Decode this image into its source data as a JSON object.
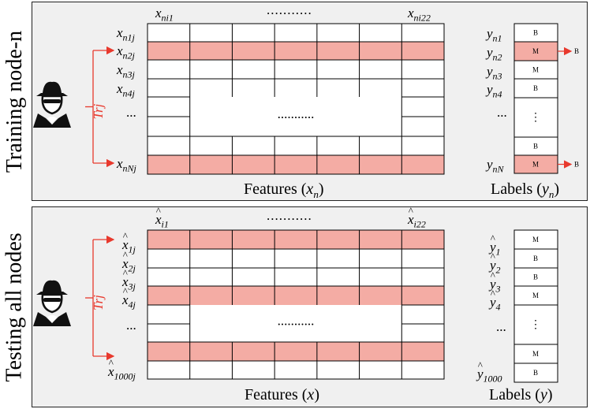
{
  "training": {
    "side_label": "Training node-n",
    "col_first": "x_{ni1}",
    "col_last": "x_{ni22}",
    "col_first_base": "x",
    "col_first_sub": "ni1",
    "col_last_base": "x",
    "col_last_sub": "ni22",
    "rows": [
      {
        "base": "x",
        "sub": "n1j"
      },
      {
        "base": "x",
        "sub": "n2j"
      },
      {
        "base": "x",
        "sub": "n3j"
      },
      {
        "base": "x",
        "sub": "n4j"
      },
      {
        "base": "x",
        "sub": "nNj"
      }
    ],
    "label_rows": [
      {
        "base": "y",
        "sub": "n1"
      },
      {
        "base": "y",
        "sub": "n2"
      },
      {
        "base": "y",
        "sub": "n3"
      },
      {
        "base": "y",
        "sub": "n4"
      },
      {
        "base": "y",
        "sub": "nN"
      }
    ],
    "label_cells": [
      "B",
      "M",
      "M",
      "B",
      "B",
      "M"
    ],
    "arrow_tags": [
      "B",
      "B"
    ],
    "features_caption": {
      "text": "Features (",
      "var": "x",
      "sub": "n",
      "close": ")"
    },
    "labels_caption": {
      "text": "Labels (",
      "var": "y",
      "sub": "n",
      "close": ")"
    },
    "trj": "Trj"
  },
  "testing": {
    "side_label": "Testing all nodes",
    "col_first_base": "x",
    "col_first_sub": "i1",
    "col_last_base": "x",
    "col_last_sub": "i22",
    "rows": [
      {
        "base": "x",
        "sub": "1j"
      },
      {
        "base": "x",
        "sub": "2j"
      },
      {
        "base": "x",
        "sub": "3j"
      },
      {
        "base": "x",
        "sub": "4j"
      },
      {
        "base": "x",
        "sub": "1000j"
      }
    ],
    "label_rows": [
      {
        "base": "y",
        "sub": "1"
      },
      {
        "base": "y",
        "sub": "2"
      },
      {
        "base": "y",
        "sub": "3"
      },
      {
        "base": "y",
        "sub": "4"
      },
      {
        "base": "y",
        "sub": "1000"
      }
    ],
    "label_cells": [
      "M",
      "B",
      "B",
      "M",
      "M",
      "B"
    ],
    "features_caption": {
      "text": "Features (",
      "var": "x",
      "close": ")"
    },
    "labels_caption": {
      "text": "Labels (",
      "var": "y",
      "close": ")"
    },
    "trj": "Trj"
  },
  "ellipsis_h": "...........",
  "ellipsis_v": "...",
  "colors": {
    "highlight": "#f4aca4",
    "arrow": "#e8392d",
    "grid": "#000000",
    "panel": "#f0f0f0"
  },
  "icons": [
    "spy-icon",
    "spy-icon"
  ]
}
